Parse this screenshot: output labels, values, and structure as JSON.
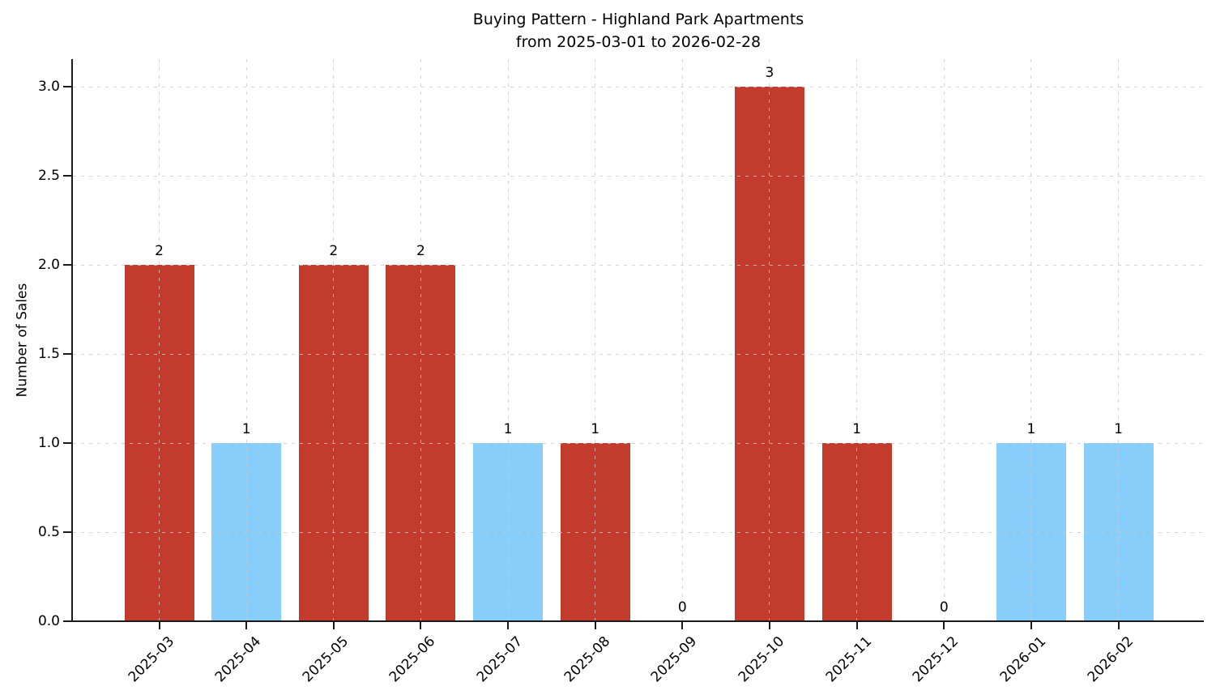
{
  "figure": {
    "background": "#ffffff"
  },
  "chart_data": {
    "type": "bar",
    "title": "Buying Pattern - Highland Park Apartments",
    "subtitle": "from 2025-03-01 to 2026-02-28",
    "xlabel": "",
    "ylabel": "Number of Sales",
    "categories": [
      "2025-03",
      "2025-04",
      "2025-05",
      "2025-06",
      "2025-07",
      "2025-08",
      "2025-09",
      "2025-10",
      "2025-11",
      "2025-12",
      "2026-01",
      "2026-02"
    ],
    "values": [
      2,
      1,
      2,
      2,
      1,
      1,
      0,
      3,
      1,
      0,
      1,
      1
    ],
    "value_labels": [
      "2",
      "1",
      "2",
      "2",
      "1",
      "1",
      "0",
      "3",
      "1",
      "0",
      "1",
      "1"
    ],
    "bar_colors": [
      "#c23b2c",
      "#87cefa",
      "#c23b2c",
      "#c23b2c",
      "#87cefa",
      "#c23b2c",
      null,
      "#c23b2c",
      "#c23b2c",
      null,
      "#87cefa",
      "#87cefa"
    ],
    "yticks": [
      "0.0",
      "0.5",
      "1.0",
      "1.5",
      "2.0",
      "2.5",
      "3.0"
    ],
    "ylim": [
      0,
      3.16
    ],
    "grid": "dashed",
    "legend": "none",
    "colors": {
      "red_bar": "#c23b2c",
      "blue_bar": "#87cefa",
      "grid": "#cacaca",
      "axis": "#1a1a1a",
      "text": "#000000"
    }
  }
}
